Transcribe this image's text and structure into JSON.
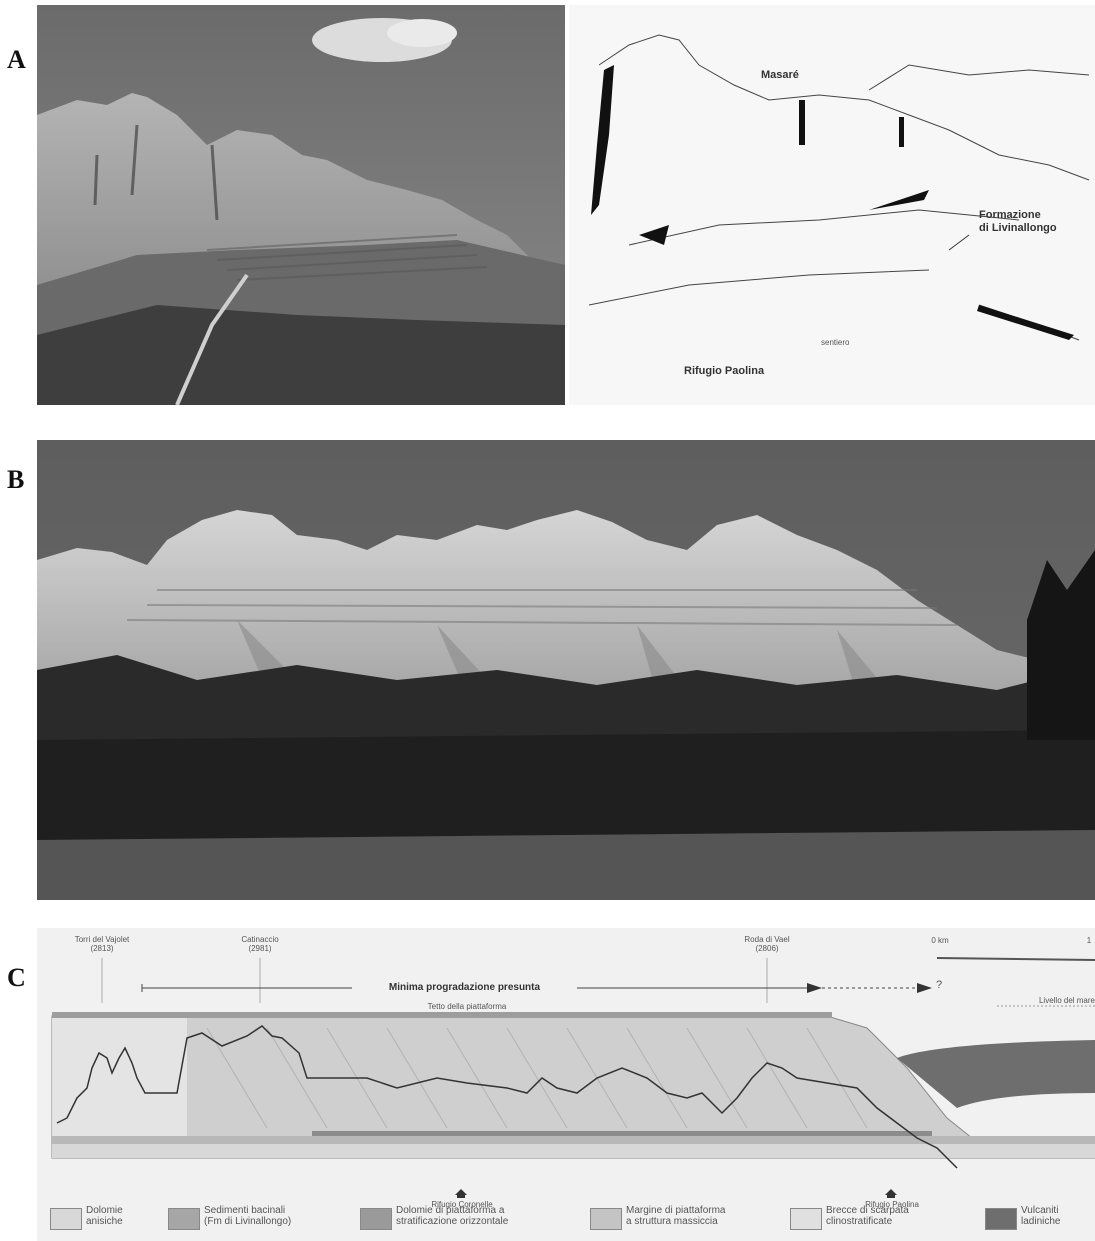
{
  "panels": {
    "a_letter": "A",
    "b_letter": "B",
    "c_letter": "C"
  },
  "sketch_labels": {
    "masare": "Masaré",
    "formazione": "Formazione\ndi Livinallongo",
    "sentiero": "sentiero",
    "rifugio": "Rifugio Paolina"
  },
  "section": {
    "peaks": [
      {
        "name": "Torri del Vajolet",
        "elev": "(2813)"
      },
      {
        "name": "Catinaccio",
        "elev": "(2981)"
      },
      {
        "name": "Roda di Vael",
        "elev": "(2806)"
      }
    ],
    "scale_start": "0 km",
    "scale_end": "1",
    "arrow_label": "Minima progradazione presunta",
    "question": "?",
    "top_label": "Tetto della piattaforma",
    "right_label": "Livello del mare",
    "refuges": [
      "Rifugio Coronelle",
      "Rifugio Paolina"
    ]
  },
  "legend": [
    {
      "label": "Dolomie\nanisiche",
      "color": "#d8d8d8"
    },
    {
      "label": "Sedimenti bacinali\n(Fm di Livinallongo)",
      "color": "#a6a6a6"
    },
    {
      "label": "Dolomie di piattaforma a\nstratificazione orizzontale",
      "color": "#9a9a9a"
    },
    {
      "label": "Margine di piattaforma\na struttura massiccia",
      "color": "#c4c4c4"
    },
    {
      "label": "Brecce di scarpata\nclinostratificate",
      "color": "#e0e0e0"
    },
    {
      "label": "Vulcaniti\nladiniche",
      "color": "#6e6e6e"
    }
  ]
}
